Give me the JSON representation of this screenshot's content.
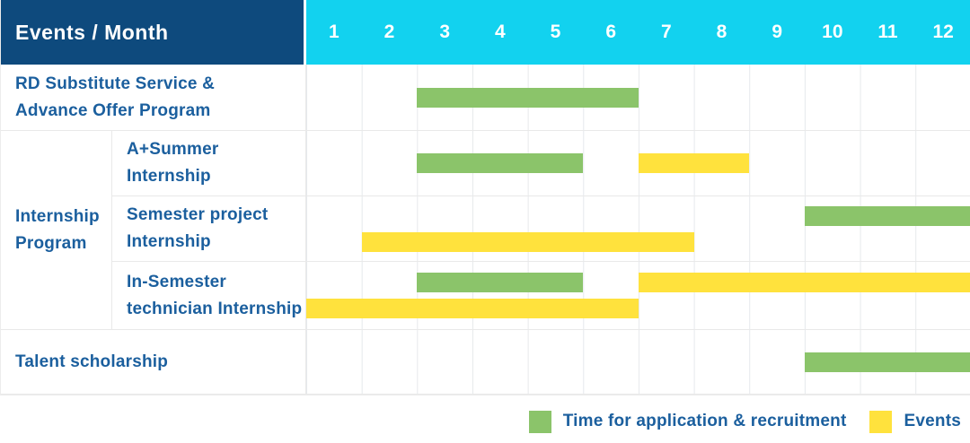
{
  "colors": {
    "header_bg": "#0e4a7d",
    "month_header_bg": "#12d2ef",
    "application_green": "#8bc46a",
    "event_yellow": "#ffe23d",
    "label_text": "#1b5f9e",
    "grid_line": "#e6e9ec"
  },
  "header": {
    "title": "Events / Month"
  },
  "group": {
    "label_lines": [
      "Internship",
      "Program"
    ]
  },
  "chart_data": {
    "type": "table",
    "subtype": "gantt-timeline",
    "title": "Events / Month",
    "x_axis_ticks": [
      "1",
      "2",
      "3",
      "4",
      "5",
      "6",
      "7",
      "8",
      "9",
      "10",
      "11",
      "12"
    ],
    "x_range": [
      1,
      12
    ],
    "grid": true,
    "legend_position": "bottom-right",
    "legend": [
      {
        "key": "application",
        "label": "Time for application & recruitment",
        "color": "#8bc46a"
      },
      {
        "key": "event",
        "label": "Events",
        "color": "#ffe23d"
      }
    ],
    "rows": [
      {
        "label_lines": [
          "RD Substitute Service &",
          "Advance Offer Program"
        ],
        "group": null,
        "indent": false,
        "lanes": [
          [
            {
              "type": "application",
              "start_month": 3,
              "end_month": 6
            }
          ]
        ]
      },
      {
        "label_lines": [
          "A+Summer",
          "Internship"
        ],
        "group": "Internship Program",
        "indent": true,
        "lanes": [
          [
            {
              "type": "application",
              "start_month": 3,
              "end_month": 5
            },
            {
              "type": "event",
              "start_month": 7,
              "end_month": 8
            }
          ]
        ]
      },
      {
        "label_lines": [
          "Semester project",
          "Internship"
        ],
        "group": "Internship Program",
        "indent": true,
        "lanes": [
          [
            {
              "type": "application",
              "start_month": 10,
              "end_month": 12
            }
          ],
          [
            {
              "type": "event",
              "start_month": 2,
              "end_month": 7
            }
          ]
        ]
      },
      {
        "label_lines": [
          "In-Semester",
          "technician Internship"
        ],
        "group": "Internship Program",
        "indent": true,
        "lanes": [
          [
            {
              "type": "application",
              "start_month": 3,
              "end_month": 5
            },
            {
              "type": "event",
              "start_month": 7,
              "end_month": 12
            }
          ],
          [
            {
              "type": "event",
              "start_month": 1,
              "end_month": 6
            }
          ]
        ]
      },
      {
        "label_lines": [
          "Talent scholarship"
        ],
        "group": null,
        "indent": false,
        "lanes": [
          [
            {
              "type": "application",
              "start_month": 10,
              "end_month": 12
            }
          ]
        ]
      }
    ]
  }
}
